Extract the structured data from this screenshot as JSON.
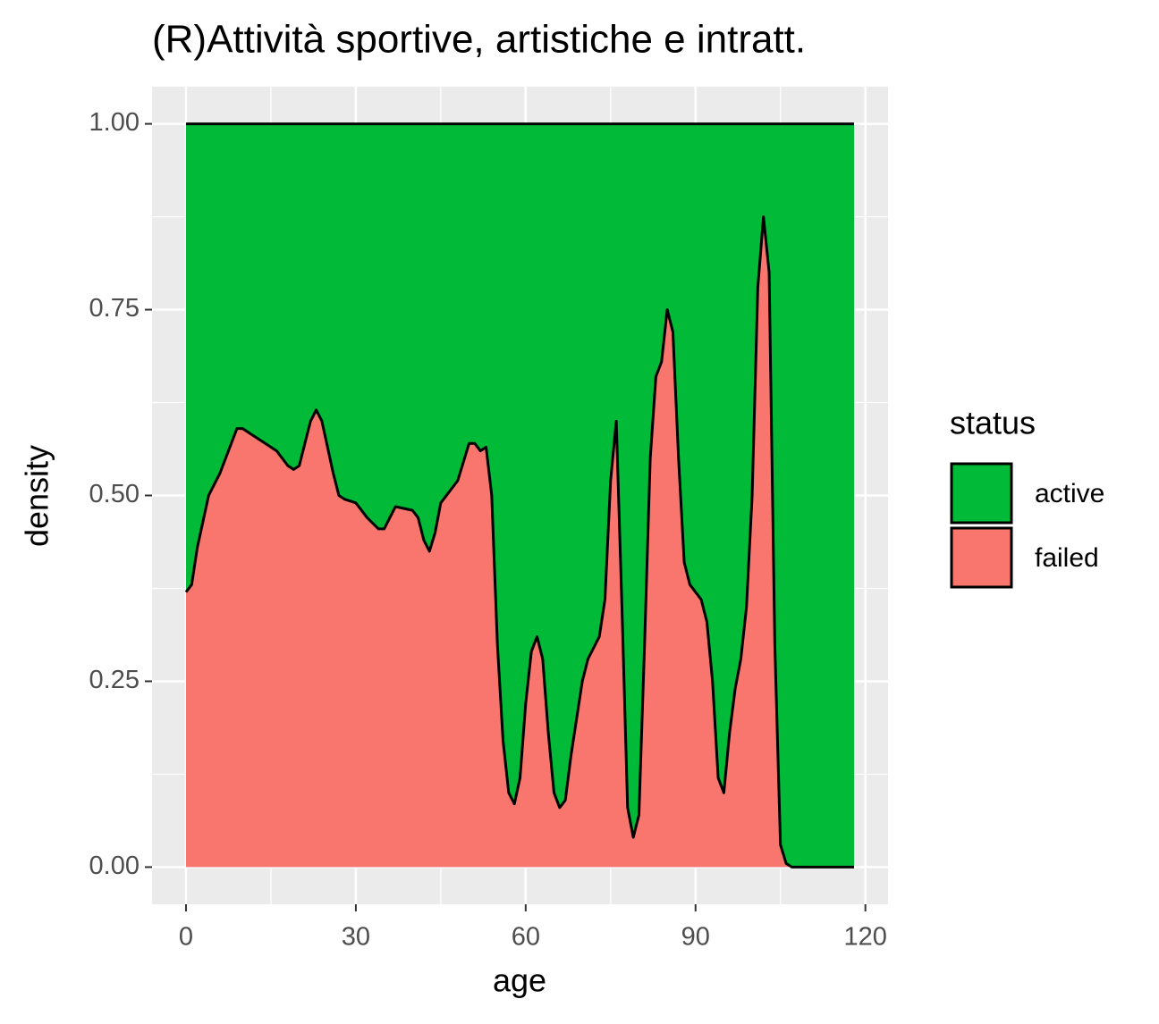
{
  "chart_data": {
    "type": "area",
    "stacked": "fill",
    "title": "(R)Attività sportive, artistiche e intratt.",
    "x_label": "age",
    "y_label": "density",
    "legend_title": "status",
    "x": [
      0,
      1,
      2,
      4,
      6,
      8,
      9,
      10,
      12,
      14,
      16,
      18,
      19,
      20,
      22,
      23,
      24,
      26,
      27,
      28,
      30,
      32,
      34,
      35,
      36,
      37,
      40,
      41,
      42,
      43,
      44,
      45,
      48,
      50,
      51,
      52,
      53,
      54,
      55,
      56,
      57,
      58,
      59,
      60,
      61,
      62,
      63,
      64,
      65,
      66,
      67,
      68,
      70,
      71,
      73,
      74,
      75,
      76,
      77,
      78,
      79,
      80,
      81,
      82,
      83,
      84,
      85,
      86,
      87,
      88,
      89,
      91,
      92,
      93,
      94,
      95,
      96,
      97,
      98,
      99,
      100,
      101,
      102,
      103,
      104,
      105,
      106,
      107,
      118
    ],
    "series": [
      {
        "name": "active",
        "color": "#00ba38",
        "values": [
          0.63,
          0.62,
          0.57,
          0.5,
          0.47,
          0.43,
          0.41,
          0.41,
          0.42,
          0.43,
          0.44,
          0.46,
          0.465,
          0.46,
          0.4,
          0.385,
          0.4,
          0.47,
          0.5,
          0.505,
          0.51,
          0.53,
          0.545,
          0.545,
          0.53,
          0.515,
          0.52,
          0.53,
          0.56,
          0.575,
          0.55,
          0.51,
          0.48,
          0.43,
          0.43,
          0.44,
          0.435,
          0.5,
          0.7,
          0.83,
          0.9,
          0.915,
          0.88,
          0.78,
          0.71,
          0.69,
          0.72,
          0.82,
          0.9,
          0.92,
          0.91,
          0.85,
          0.75,
          0.72,
          0.69,
          0.64,
          0.48,
          0.4,
          0.65,
          0.92,
          0.96,
          0.93,
          0.7,
          0.45,
          0.34,
          0.32,
          0.25,
          0.28,
          0.45,
          0.59,
          0.62,
          0.64,
          0.67,
          0.75,
          0.88,
          0.9,
          0.82,
          0.76,
          0.72,
          0.65,
          0.5,
          0.22,
          0.125,
          0.2,
          0.7,
          0.97,
          0.995,
          1,
          1
        ]
      },
      {
        "name": "failed",
        "color": "#f8766d",
        "values": [
          0.37,
          0.38,
          0.43,
          0.5,
          0.53,
          0.57,
          0.59,
          0.59,
          0.58,
          0.57,
          0.56,
          0.54,
          0.535,
          0.54,
          0.6,
          0.615,
          0.6,
          0.53,
          0.5,
          0.495,
          0.49,
          0.47,
          0.455,
          0.455,
          0.47,
          0.485,
          0.48,
          0.47,
          0.44,
          0.425,
          0.45,
          0.49,
          0.52,
          0.57,
          0.57,
          0.56,
          0.565,
          0.5,
          0.3,
          0.17,
          0.1,
          0.085,
          0.12,
          0.22,
          0.29,
          0.31,
          0.28,
          0.18,
          0.1,
          0.08,
          0.09,
          0.15,
          0.25,
          0.28,
          0.31,
          0.36,
          0.52,
          0.6,
          0.35,
          0.08,
          0.04,
          0.07,
          0.3,
          0.55,
          0.66,
          0.68,
          0.75,
          0.72,
          0.55,
          0.41,
          0.38,
          0.36,
          0.33,
          0.25,
          0.12,
          0.1,
          0.18,
          0.24,
          0.28,
          0.35,
          0.5,
          0.78,
          0.875,
          0.8,
          0.3,
          0.03,
          0.005,
          0,
          0
        ]
      }
    ],
    "xlim": [
      -6,
      124
    ],
    "xticks": [
      0,
      30,
      60,
      90,
      120
    ],
    "ylim": [
      -0.05,
      1.05
    ],
    "yticks": [
      {
        "value": 0,
        "label": "0.00"
      },
      {
        "value": 0.25,
        "label": "0.25"
      },
      {
        "value": 0.5,
        "label": "0.50"
      },
      {
        "value": 0.75,
        "label": "0.75"
      },
      {
        "value": 1,
        "label": "1.00"
      }
    ],
    "grid": true,
    "legend_position": "right"
  }
}
